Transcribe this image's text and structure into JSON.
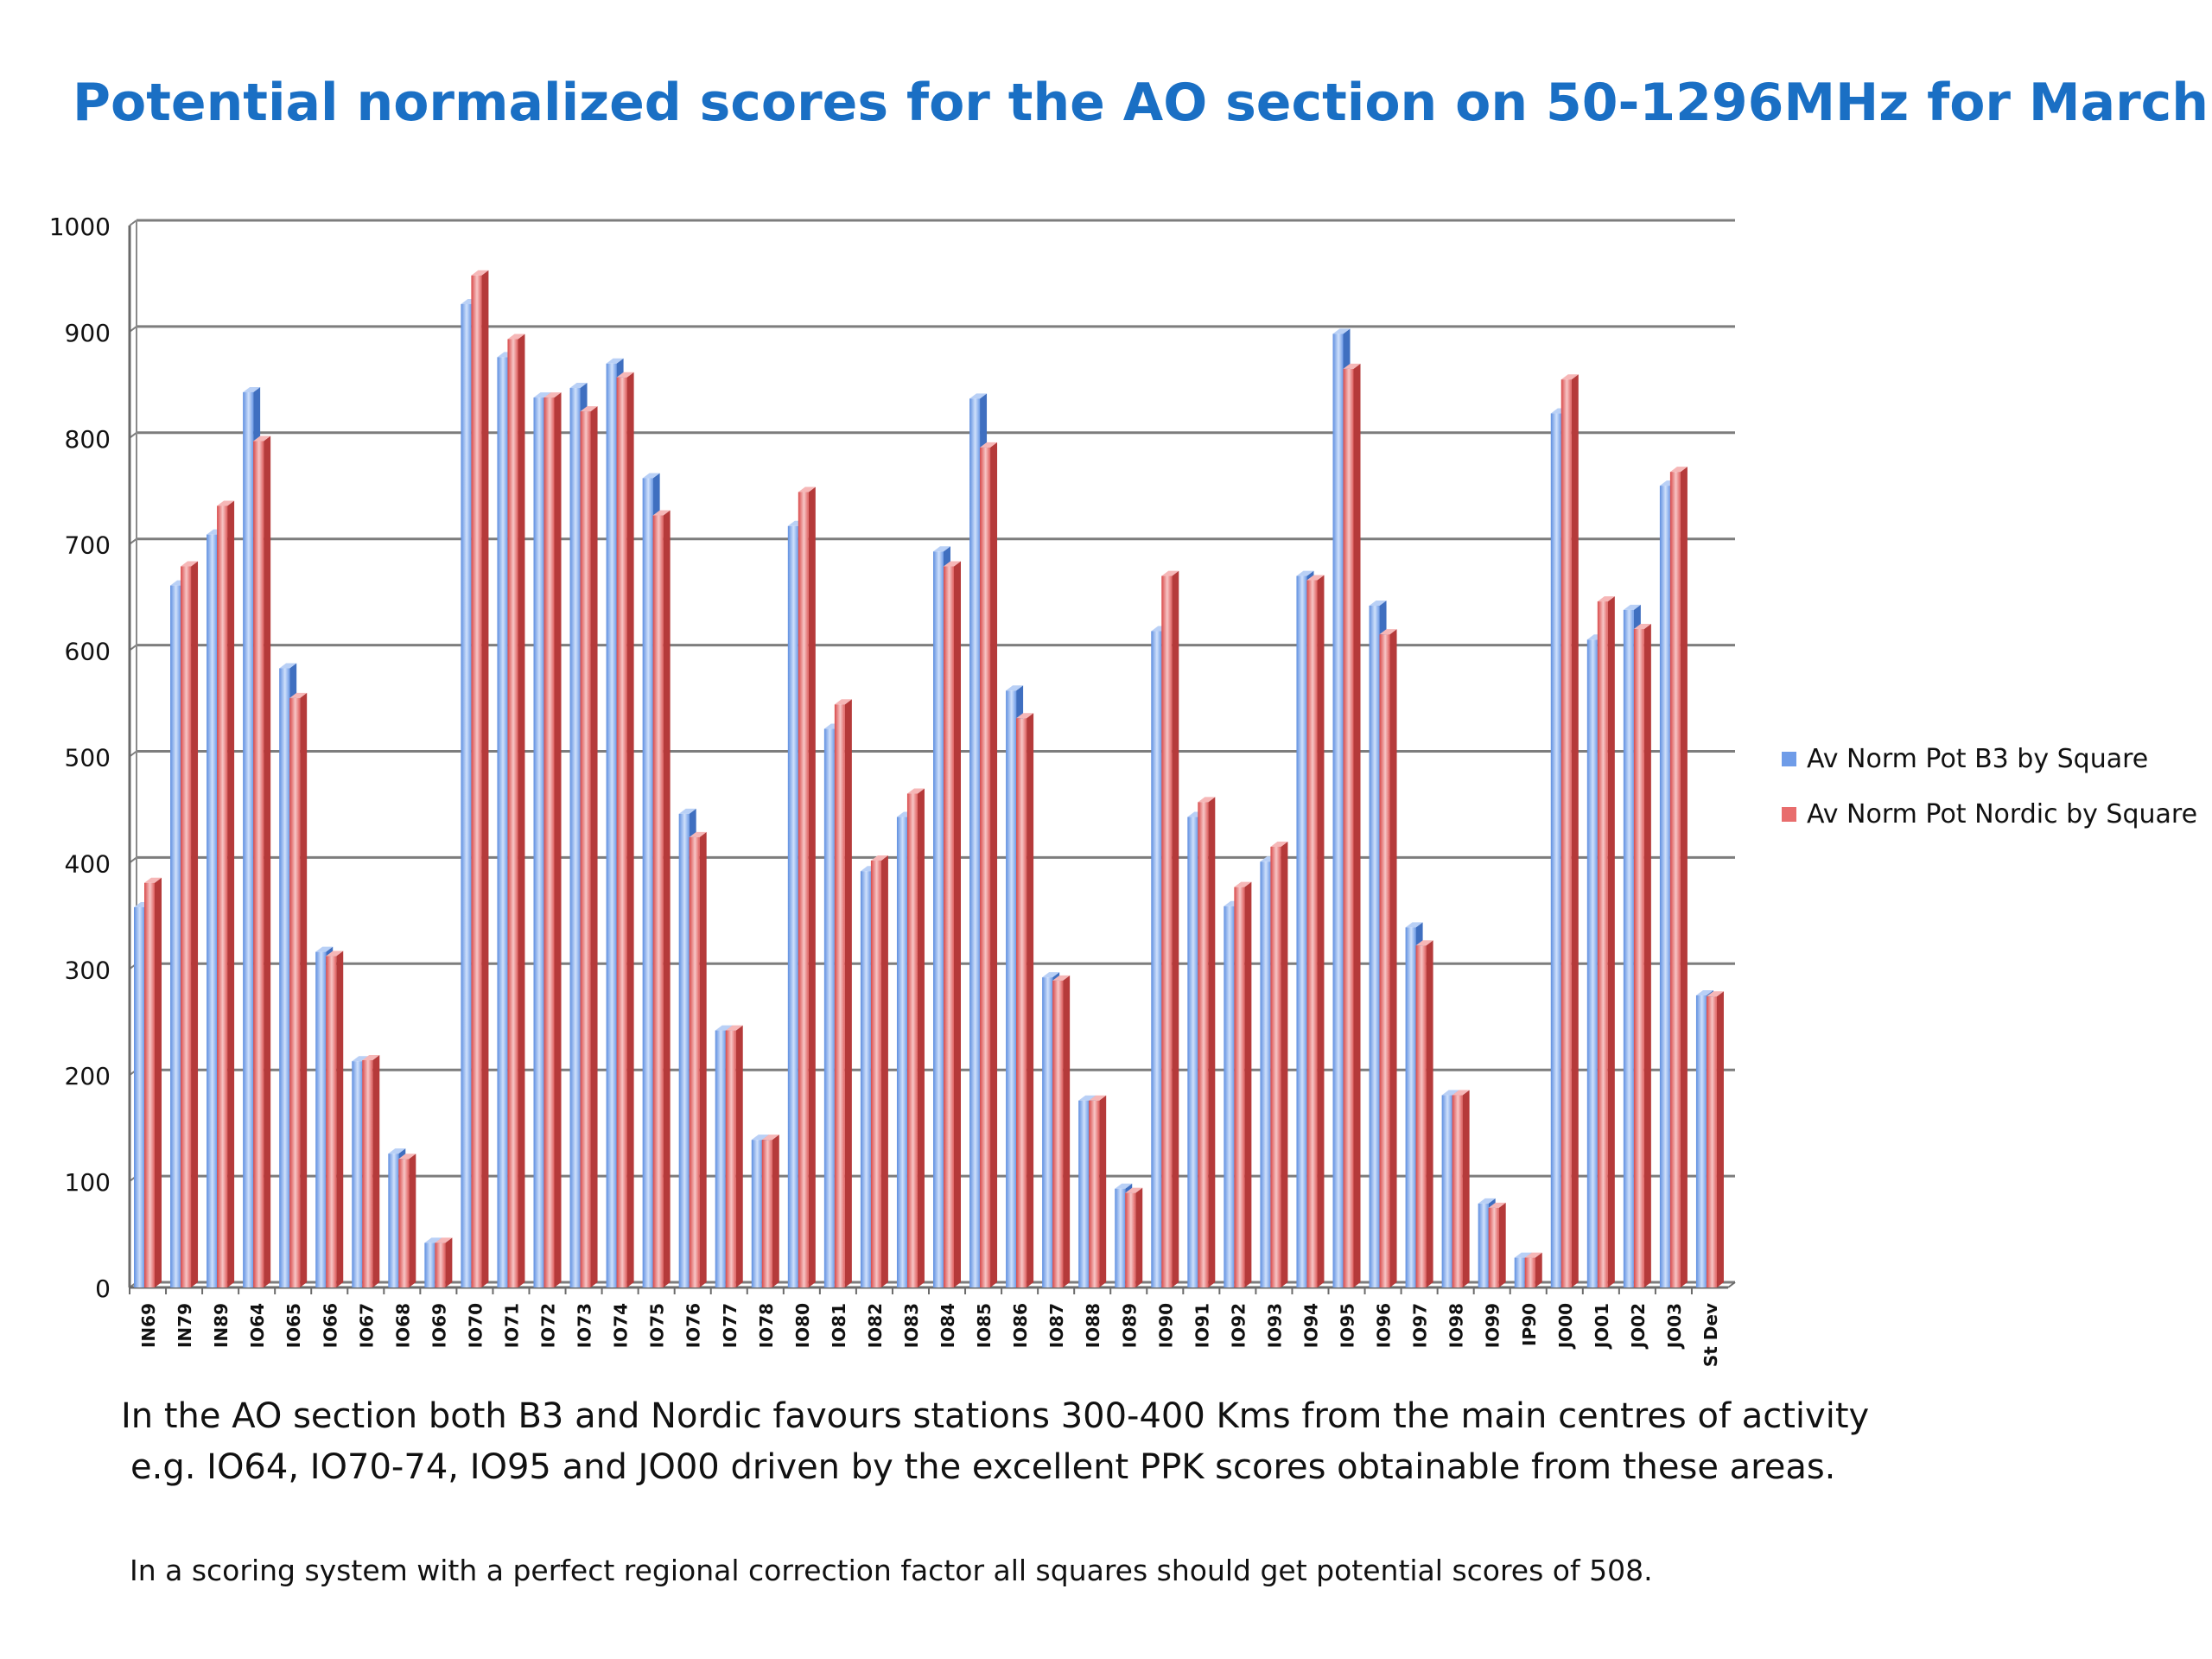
{
  "slide": {
    "title": "Potential normalized scores for the AO section on 50-1296MHz for March",
    "note_line1": "In the AO section both B3 and Nordic favours stations 300-400 Kms from the main centres of activity",
    "note_line2": "e.g. IO64, IO70-74, IO95 and JO00 driven by the excellent PPK scores obtainable from these areas.",
    "note_small": "In a scoring system with a perfect regional correction factor all squares should get potential scores of 508."
  },
  "chart_data": {
    "type": "bar",
    "title": "Potential normalized scores for the AO section on 50-1296MHz for March",
    "xlabel": "",
    "ylabel": "",
    "ylim": [
      0,
      1000
    ],
    "yticks": [
      0,
      100,
      200,
      300,
      400,
      500,
      600,
      700,
      800,
      900,
      1000
    ],
    "grid": true,
    "legend_position": "right",
    "categories": [
      "IN69",
      "IN79",
      "IN89",
      "IO64",
      "IO65",
      "IO66",
      "IO67",
      "IO68",
      "IO69",
      "IO70",
      "IO71",
      "IO72",
      "IO73",
      "IO74",
      "IO75",
      "IO76",
      "IO77",
      "IO78",
      "IO80",
      "IO81",
      "IO82",
      "IO83",
      "IO84",
      "IO85",
      "IO86",
      "IO87",
      "IO88",
      "IO89",
      "IO90",
      "IO91",
      "IO92",
      "IO93",
      "IO94",
      "IO95",
      "IO96",
      "IO97",
      "IO98",
      "IO99",
      "IP90",
      "JO00",
      "JO01",
      "JO02",
      "JO03",
      "St Dev"
    ],
    "series": [
      {
        "name": "Av Norm Pot B3 by Square",
        "color": "#8db3f2",
        "values": [
          358,
          661,
          709,
          843,
          583,
          316,
          213,
          126,
          42,
          926,
          876,
          838,
          847,
          870,
          762,
          446,
          242,
          139,
          717,
          526,
          392,
          443,
          693,
          837,
          562,
          292,
          176,
          93,
          618,
          443,
          359,
          401,
          670,
          898,
          642,
          339,
          181,
          79,
          28,
          823,
          610,
          638,
          755,
          275
        ]
      },
      {
        "name": "Av Norm Pot Nordic by Square",
        "color": "#f29090",
        "values": [
          381,
          679,
          736,
          797,
          555,
          312,
          214,
          121,
          42,
          953,
          893,
          838,
          825,
          857,
          727,
          424,
          242,
          139,
          749,
          549,
          402,
          465,
          679,
          791,
          536,
          289,
          176,
          89,
          670,
          457,
          377,
          415,
          666,
          865,
          615,
          322,
          181,
          75,
          28,
          855,
          646,
          620,
          768,
          274
        ]
      }
    ]
  }
}
